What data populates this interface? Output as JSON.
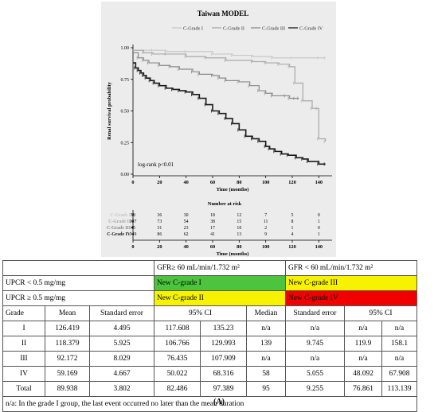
{
  "chart_data": {
    "type": "line",
    "title": "Taiwan MODEL",
    "xlabel": "Time (months)",
    "ylabel": "Renal survival probability",
    "xlim": [
      0,
      150
    ],
    "ylim": [
      0,
      1.0
    ],
    "x_ticks": [
      0,
      20,
      40,
      60,
      80,
      100,
      120,
      140
    ],
    "y_ticks": [
      0.0,
      0.25,
      0.5,
      0.75,
      1.0
    ],
    "y_tick_labels": [
      "0.00",
      "0.25",
      "0.50",
      "0.75",
      "1.00"
    ],
    "annotation": "log-rank p<0.01",
    "legend_position": "top",
    "series": [
      {
        "name": "C-Grade I",
        "color": "#c8c8c8",
        "width": 1.2,
        "points": [
          [
            0,
            0.98
          ],
          [
            15,
            0.98
          ],
          [
            25,
            0.97
          ],
          [
            40,
            0.97
          ],
          [
            60,
            0.95
          ],
          [
            75,
            0.94
          ],
          [
            90,
            0.93
          ],
          [
            105,
            0.92
          ],
          [
            120,
            0.92
          ],
          [
            140,
            0.92
          ],
          [
            145,
            0.92
          ]
        ]
      },
      {
        "name": "C-Grade II",
        "color": "#a8a8a8",
        "width": 1.2,
        "points": [
          [
            0,
            0.98
          ],
          [
            8,
            0.96
          ],
          [
            15,
            0.95
          ],
          [
            25,
            0.95
          ],
          [
            40,
            0.93
          ],
          [
            55,
            0.92
          ],
          [
            70,
            0.9
          ],
          [
            90,
            0.89
          ],
          [
            100,
            0.88
          ],
          [
            110,
            0.87
          ],
          [
            118,
            0.85
          ],
          [
            122,
            0.72
          ],
          [
            128,
            0.58
          ],
          [
            135,
            0.52
          ],
          [
            139,
            0.52
          ],
          [
            140,
            0.28
          ],
          [
            145,
            0.26
          ]
        ]
      },
      {
        "name": "C-Grade III",
        "color": "#8a8a8a",
        "width": 1.2,
        "points": [
          [
            0,
            0.96
          ],
          [
            4,
            0.92
          ],
          [
            8,
            0.9
          ],
          [
            12,
            0.88
          ],
          [
            20,
            0.86
          ],
          [
            28,
            0.85
          ],
          [
            35,
            0.83
          ],
          [
            45,
            0.81
          ],
          [
            50,
            0.79
          ],
          [
            60,
            0.78
          ],
          [
            65,
            0.76
          ],
          [
            70,
            0.74
          ],
          [
            80,
            0.73
          ],
          [
            88,
            0.7
          ],
          [
            95,
            0.66
          ],
          [
            100,
            0.64
          ],
          [
            105,
            0.62
          ],
          [
            115,
            0.62
          ],
          [
            118,
            0.6
          ],
          [
            122,
            0.6
          ],
          [
            125,
            0.6
          ]
        ]
      },
      {
        "name": "C-Grade IV",
        "color": "#1a1a1a",
        "width": 1.6,
        "points": [
          [
            0,
            0.88
          ],
          [
            2,
            0.84
          ],
          [
            4,
            0.82
          ],
          [
            6,
            0.8
          ],
          [
            8,
            0.78
          ],
          [
            10,
            0.76
          ],
          [
            13,
            0.74
          ],
          [
            16,
            0.72
          ],
          [
            20,
            0.7
          ],
          [
            25,
            0.68
          ],
          [
            30,
            0.67
          ],
          [
            35,
            0.66
          ],
          [
            40,
            0.65
          ],
          [
            45,
            0.63
          ],
          [
            50,
            0.6
          ],
          [
            55,
            0.55
          ],
          [
            60,
            0.5
          ],
          [
            65,
            0.48
          ],
          [
            70,
            0.44
          ],
          [
            75,
            0.4
          ],
          [
            80,
            0.35
          ],
          [
            85,
            0.3
          ],
          [
            90,
            0.28
          ],
          [
            95,
            0.26
          ],
          [
            100,
            0.22
          ],
          [
            103,
            0.2
          ],
          [
            107,
            0.18
          ],
          [
            112,
            0.16
          ],
          [
            117,
            0.15
          ],
          [
            123,
            0.13
          ],
          [
            128,
            0.12
          ],
          [
            132,
            0.1
          ],
          [
            140,
            0.08
          ],
          [
            145,
            0.08
          ]
        ]
      }
    ],
    "risk_table": {
      "title": "Number at risk",
      "xlabel": "Time (months)",
      "rows": [
        {
          "label": "C-Grade I",
          "color": "#c8c8c8",
          "values": [
            "58",
            "36",
            "30",
            "18",
            "12",
            "7",
            "5",
            "0"
          ]
        },
        {
          "label": "C-Grade II",
          "color": "#a8a8a8",
          "values": [
            "107",
            "73",
            "54",
            "38",
            "15",
            "11",
            "8",
            "1"
          ]
        },
        {
          "label": "C-Grade III",
          "color": "#8a8a8a",
          "values": [
            "45",
            "31",
            "23",
            "17",
            "10",
            "2",
            "1",
            "0"
          ]
        },
        {
          "label": "C-Grade IV",
          "color": "#1a1a1a",
          "values": [
            "149",
            "86",
            "62",
            "41",
            "13",
            "9",
            "4",
            "1"
          ]
        }
      ]
    }
  },
  "table": {
    "gfr_high": "GFR≥ 60 mL/min/1.732 m²",
    "gfr_low": "GFR < 60 mL/min/1.732 m²",
    "upcr_low": "UPCR < 0.5 mg/mg",
    "upcr_high": "UPCR ≥ 0.5 mg/mg",
    "grade_i_label": "New C-grade I",
    "grade_iii_label": "New C-grade III",
    "grade_ii_label": "New C-grade II",
    "grade_iv_label": "New C-grade IV",
    "headers": {
      "grade": "Grade",
      "mean": "Mean",
      "se1": "Standard error",
      "ci1": "95% CI",
      "median": "Median",
      "se2": "Standard error",
      "ci2": "95% CI"
    },
    "rows": [
      [
        "I",
        "126.419",
        "4.495",
        "117.608",
        "135.23",
        "n/a",
        "n/a",
        "n/a",
        "n/a"
      ],
      [
        "II",
        "118.379",
        "5.925",
        "106.766",
        "129.993",
        "139",
        "9.745",
        "119.9",
        "158.1"
      ],
      [
        "III",
        "92.172",
        "8.029",
        "76.435",
        "107.909",
        "n/a",
        "n/a",
        "n/a",
        "n/a"
      ],
      [
        "IV",
        "59.169",
        "4.667",
        "50.022",
        "68.316",
        "58",
        "5.055",
        "48.092",
        "67.908"
      ],
      [
        "Total",
        "89.938",
        "3.802",
        "82.486",
        "97.389",
        "95",
        "9.255",
        "76.861",
        "113.139"
      ]
    ],
    "footnote": "n/a: In the grade I group, the last event occurred no later than the mean duration"
  },
  "caption": "(A)"
}
